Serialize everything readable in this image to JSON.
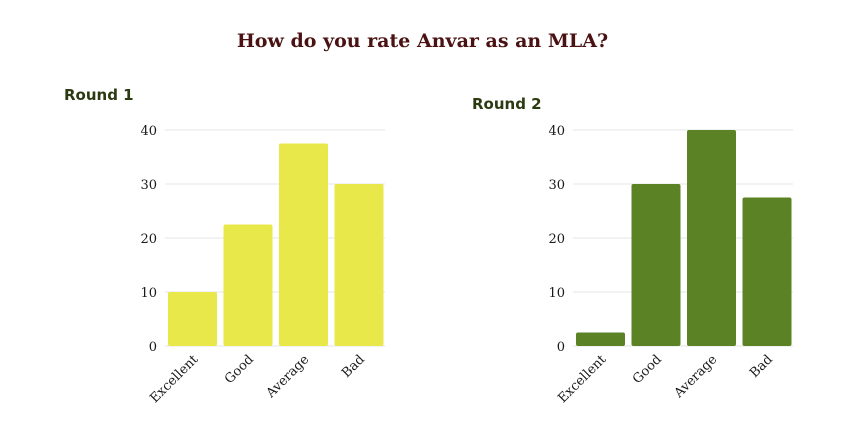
{
  "title": "How do you rate Anvar as an MLA?",
  "chart_data": [
    {
      "type": "bar",
      "title": "Round 1",
      "categories": [
        "Excellent",
        "Good",
        "Average",
        "Bad"
      ],
      "values": [
        10,
        22.5,
        37.5,
        30
      ],
      "ylim": [
        0,
        40
      ],
      "yticks": [
        0,
        10,
        20,
        30,
        40
      ],
      "color": "#e8e84a",
      "grid": true
    },
    {
      "type": "bar",
      "title": "Round 2",
      "categories": [
        "Excellent",
        "Good",
        "Average",
        "Bad"
      ],
      "values": [
        2.5,
        30,
        40,
        27.5
      ],
      "ylim": [
        0,
        40
      ],
      "yticks": [
        0,
        10,
        20,
        30,
        40
      ],
      "color": "#5b8224",
      "grid": true
    }
  ]
}
